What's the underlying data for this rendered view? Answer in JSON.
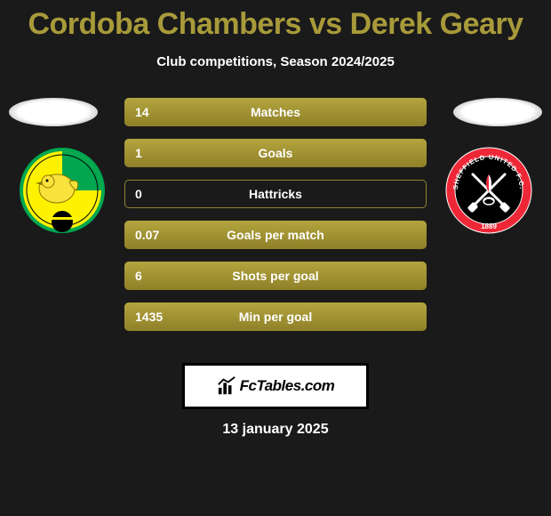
{
  "title": "Cordoba Chambers vs Derek Geary",
  "subtitle": "Club competitions, Season 2024/2025",
  "colors": {
    "background": "#1a1a1a",
    "accent": "#a89a3a",
    "bar_fill_top": "#b3a53e",
    "bar_fill_bottom": "#8f8028",
    "bar_border": "#8f8430",
    "text": "#ffffff"
  },
  "player_left": {
    "club": "Norwich City",
    "crest_colors": {
      "primary": "#fff200",
      "secondary": "#00a650",
      "bird": "#f9e23c"
    }
  },
  "player_right": {
    "club": "Sheffield United",
    "crest_colors": {
      "ring": "#ee2737",
      "inner": "#000000",
      "swords": "#ffffff",
      "year": "1889"
    }
  },
  "stats": [
    {
      "label": "Matches",
      "value": "14",
      "fill_pct": 100
    },
    {
      "label": "Goals",
      "value": "1",
      "fill_pct": 100
    },
    {
      "label": "Hattricks",
      "value": "0",
      "fill_pct": 0
    },
    {
      "label": "Goals per match",
      "value": "0.07",
      "fill_pct": 100
    },
    {
      "label": "Shots per goal",
      "value": "6",
      "fill_pct": 100
    },
    {
      "label": "Min per goal",
      "value": "1435",
      "fill_pct": 100
    }
  ],
  "brand": "FcTables.com",
  "date": "13 january 2025"
}
